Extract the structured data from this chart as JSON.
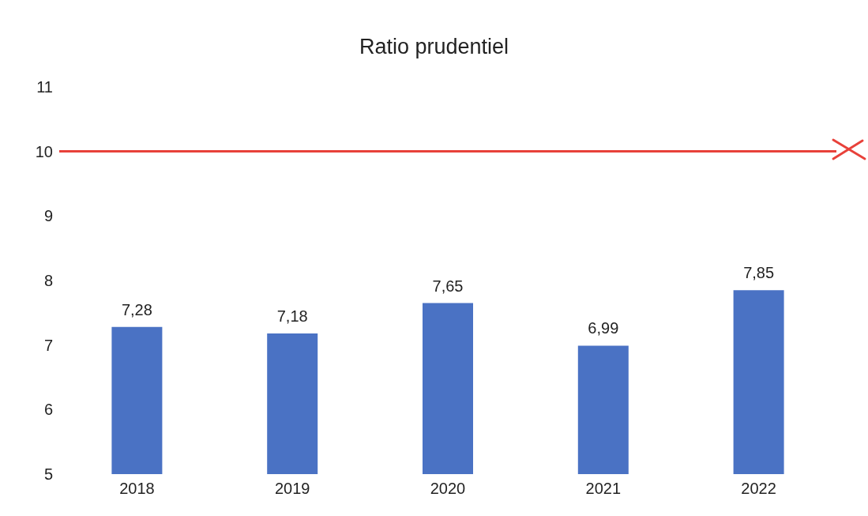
{
  "chart_data": {
    "type": "bar",
    "title": "Ratio prudentiel",
    "categories": [
      "2018",
      "2019",
      "2020",
      "2021",
      "2022"
    ],
    "values": [
      7.28,
      7.18,
      7.65,
      6.99,
      7.85
    ],
    "value_labels": [
      "7,28",
      "7,18",
      "7,65",
      "6,99",
      "7,85"
    ],
    "color": "#4a72c4",
    "ylim": [
      5,
      11
    ],
    "yticks": [
      5,
      6,
      7,
      8,
      9,
      10,
      11
    ],
    "ref_lines": [
      {
        "axis": "y",
        "value": 10,
        "color": "#e8413a"
      }
    ]
  }
}
